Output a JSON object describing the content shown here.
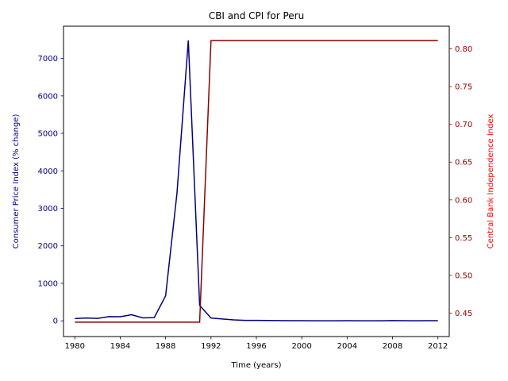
{
  "chart_data": {
    "type": "line",
    "title": "CBI and CPI for Peru",
    "xlabel": "Time (years)",
    "ylabel_left": "Consumer Price Index (% change)",
    "ylabel_right": "Central Bank Independence Index",
    "xlim": [
      1979,
      2013
    ],
    "ylim_left": [
      -420,
      7860
    ],
    "ylim_right": [
      0.419,
      0.83
    ],
    "x_ticks": [
      1980,
      1984,
      1988,
      1992,
      1996,
      2000,
      2004,
      2008,
      2012
    ],
    "y_left_ticks": [
      0,
      1000,
      2000,
      3000,
      4000,
      5000,
      6000,
      7000
    ],
    "y_right_ticks": [
      "0.45",
      "0.50",
      "0.55",
      "0.60",
      "0.65",
      "0.70",
      "0.75",
      "0.80"
    ],
    "grid": false,
    "colors": {
      "cpi": "#000080",
      "cbi": "#8b0000",
      "left_axis": "#000080",
      "right_axis": "#8b0000",
      "right_label": "#ff0000"
    },
    "x": [
      1980,
      1981,
      1982,
      1983,
      1984,
      1985,
      1986,
      1987,
      1988,
      1989,
      1990,
      1991,
      1992,
      1993,
      1994,
      1995,
      1996,
      1997,
      1998,
      1999,
      2000,
      2001,
      2002,
      2003,
      2004,
      2005,
      2006,
      2007,
      2008,
      2009,
      2010,
      2011,
      2012
    ],
    "series": [
      {
        "axis": "left",
        "values": [
          59,
          75,
          64,
          111,
          110,
          163,
          78,
          86,
          667,
          3399,
          7482,
          410,
          74,
          49,
          24,
          11,
          12,
          9,
          7,
          3,
          4,
          2,
          0,
          2,
          4,
          2,
          2,
          2,
          6,
          3,
          2,
          3,
          4
        ]
      },
      {
        "axis": "right",
        "values": [
          0.438,
          0.438,
          0.438,
          0.438,
          0.438,
          0.438,
          0.438,
          0.438,
          0.438,
          0.438,
          0.438,
          0.438,
          0.811,
          0.811,
          0.811,
          0.811,
          0.811,
          0.811,
          0.811,
          0.811,
          0.811,
          0.811,
          0.811,
          0.811,
          0.811,
          0.811,
          0.811,
          0.811,
          0.811,
          0.811,
          0.811,
          0.811,
          0.811
        ]
      }
    ]
  }
}
